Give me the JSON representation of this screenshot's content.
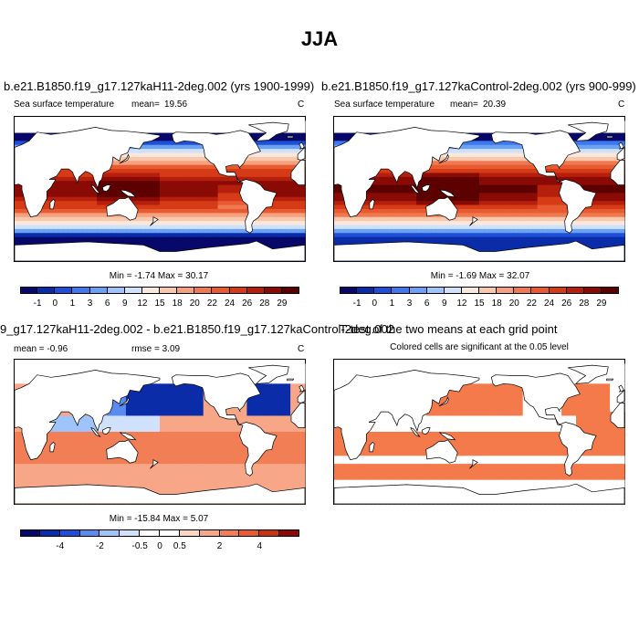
{
  "figure": {
    "title": "JJA"
  },
  "panels": {
    "p1": {
      "title": "b.e21.B1850.f19_g17.127kaH11-2deg.002 (yrs 1900-1999)",
      "variable": "Sea surface temperature",
      "stat_label": "mean=",
      "stat_value": "19.56",
      "units": "C",
      "minmax": "Min =  -1.74 Max =  30.17",
      "colorbar": [
        "-1",
        "0",
        "1",
        "3",
        "6",
        "9",
        "12",
        "15",
        "18",
        "20",
        "22",
        "24",
        "26",
        "28",
        "29"
      ]
    },
    "p2": {
      "title": "b.e21.B1850.f19_g17.127kaControl-2deg.002 (yrs 900-999)",
      "variable": "Sea surface temperature",
      "stat_label": "mean=",
      "stat_value": "20.39",
      "units": "C",
      "minmax": "Min =  -1.69 Max =  32.07",
      "colorbar": [
        "-1",
        "0",
        "1",
        "3",
        "6",
        "9",
        "12",
        "15",
        "18",
        "20",
        "22",
        "24",
        "26",
        "28",
        "29"
      ]
    },
    "p3": {
      "title": "9_g17.127kaH11-2deg.002 - b.e21.B1850.f19_g17.127kaControl-2deg.002",
      "mean_text": "mean =  -0.96",
      "rmse_text": "rmse =   3.09",
      "units": "C",
      "minmax": "Min = -15.84 Max =   5.07",
      "colorbar": [
        "-4",
        "-2",
        "-0.5",
        "0",
        "0.5",
        "2",
        "4"
      ]
    },
    "p4": {
      "title": "T-test of the two means at each grid point",
      "subtitle": "Colored cells are significant at the 0.05 level"
    }
  },
  "colors": {
    "sst_scale": [
      "#08086b",
      "#0b2ca8",
      "#1f4fd6",
      "#3d78ef",
      "#6aa0f6",
      "#9ec4fb",
      "#cfe1fb",
      "#fbe8dc",
      "#f9c7ab",
      "#f5a07e",
      "#ef7a52",
      "#e85a30",
      "#d63b17",
      "#b51f0c",
      "#8a0b05",
      "#5c0000"
    ],
    "diff_scale": [
      "#08086b",
      "#0b2ca8",
      "#1f4fd6",
      "#5a8cf0",
      "#9ec4fb",
      "#cfe1fb",
      "#ffffff",
      "#ffffff",
      "#fbd6c1",
      "#f7a787",
      "#f27e56",
      "#e85a30",
      "#c9330f",
      "#8a0b05"
    ],
    "signif": "#f47a4c",
    "land": "#ffffff",
    "coast": "#000000"
  }
}
